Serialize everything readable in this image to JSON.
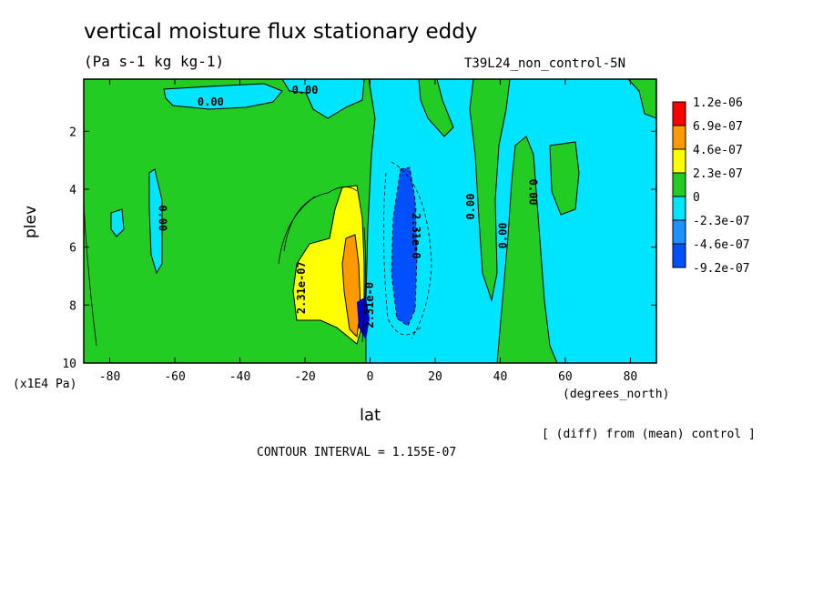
{
  "header": {
    "title": "vertical moisture flux stationary eddy",
    "units": "(Pa s-1 kg kg-1)",
    "run_label": "T39L24_non_control-5N"
  },
  "footer": {
    "diff_note": "[ (diff) from (mean) control ]",
    "contour_interval": "CONTOUR INTERVAL = 1.155E-07"
  },
  "colors": {
    "green": "#22cc22",
    "cyan": "#00e5ff",
    "mid_blue": "#1e90ff",
    "dark_blue": "#0050ff",
    "yellow": "#ffff00",
    "orange": "#ff9900",
    "red": "#ff0000",
    "navy": "#0000c8"
  },
  "chart_data": {
    "type": "heatmap",
    "title": "vertical moisture flux stationary eddy",
    "subtitle": "(Pa s-1 kg kg-1)",
    "xlabel": "lat",
    "ylabel": "plev",
    "x_unit": "(degrees_north)",
    "y_unit": "(x1E4 Pa)",
    "xlim": [
      -88,
      88
    ],
    "ylim": [
      0.2,
      10
    ],
    "y_inverted": true,
    "x_ticks": [
      -80,
      -60,
      -40,
      -20,
      0,
      20,
      40,
      60,
      80
    ],
    "y_ticks": [
      2,
      4,
      6,
      8,
      10
    ],
    "contour_interval": 1.155e-07,
    "colorbar": {
      "labels": [
        "1.2e-06",
        "6.9e-07",
        "4.6e-07",
        "2.3e-07",
        "0",
        "-2.3e-07",
        "-4.6e-07",
        "-9.2e-07"
      ],
      "colors": [
        "#ff0000",
        "#ff9900",
        "#ffff00",
        "#22cc22",
        "#00e5ff",
        "#1e90ff",
        "#0050ff"
      ]
    },
    "contour_labels": [
      {
        "text": "0.00",
        "lat": -49,
        "plev": 1.0,
        "rot": 0
      },
      {
        "text": "0.00",
        "lat": -20,
        "plev": 0.6,
        "rot": 0
      },
      {
        "text": "0.00",
        "lat": -64,
        "plev": 5.0,
        "rot": 90
      },
      {
        "text": "2.31e-07",
        "lat": -21,
        "plev": 7.4,
        "rot": -90
      },
      {
        "text": "2.31e-0",
        "lat": 0,
        "plev": 8.0,
        "rot": -90
      },
      {
        "text": "-2.31e-0",
        "lat": 14,
        "plev": 5.5,
        "rot": 90
      },
      {
        "text": "0.00",
        "lat": 31,
        "plev": 4.6,
        "rot": -90
      },
      {
        "text": "0.00",
        "lat": 41,
        "plev": 5.6,
        "rot": -90
      },
      {
        "text": "0.00",
        "lat": 50,
        "plev": 4.1,
        "rot": 90
      }
    ],
    "regions": [
      {
        "name": "yellow-positive-core",
        "level": "2.3e-07",
        "lat_range": [
          -23,
          -2
        ],
        "plev_range": [
          3.8,
          9.3
        ]
      },
      {
        "name": "orange-positive-core",
        "level": "4.6e-07",
        "lat_range": [
          -10,
          -4
        ],
        "plev_range": [
          5.6,
          8.8
        ]
      },
      {
        "name": "dark-blue-negative-core",
        "level": "-4.6e-07",
        "lat_range": [
          5,
          14
        ],
        "plev_range": [
          3.6,
          8.8
        ]
      },
      {
        "name": "cyan-negative-band-north",
        "level": "-2.3e-07",
        "lat_range": [
          1,
          88
        ],
        "plev_range": [
          0.2,
          10
        ]
      }
    ]
  }
}
